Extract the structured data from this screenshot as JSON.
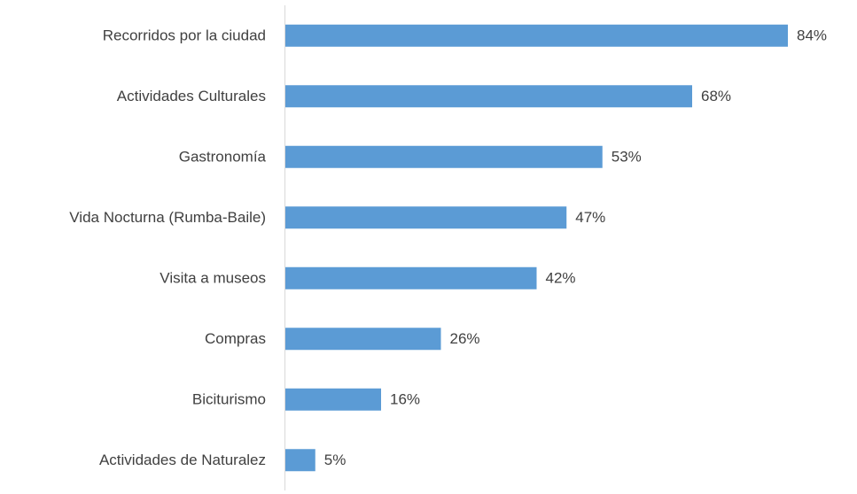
{
  "chart_data": {
    "type": "bar",
    "orientation": "horizontal",
    "categories": [
      "Recorridos por la ciudad",
      "Actividades Culturales",
      "Gastronomía",
      "Vida Nocturna (Rumba-Baile)",
      "Visita a museos",
      "Compras",
      "Biciturismo",
      "Actividades de Naturalez"
    ],
    "values": [
      84,
      68,
      53,
      47,
      42,
      26,
      16,
      5
    ],
    "value_labels": [
      "84%",
      "68%",
      "53%",
      "47%",
      "42%",
      "26%",
      "16%",
      "5%"
    ],
    "color": "#5b9bd5"
  }
}
